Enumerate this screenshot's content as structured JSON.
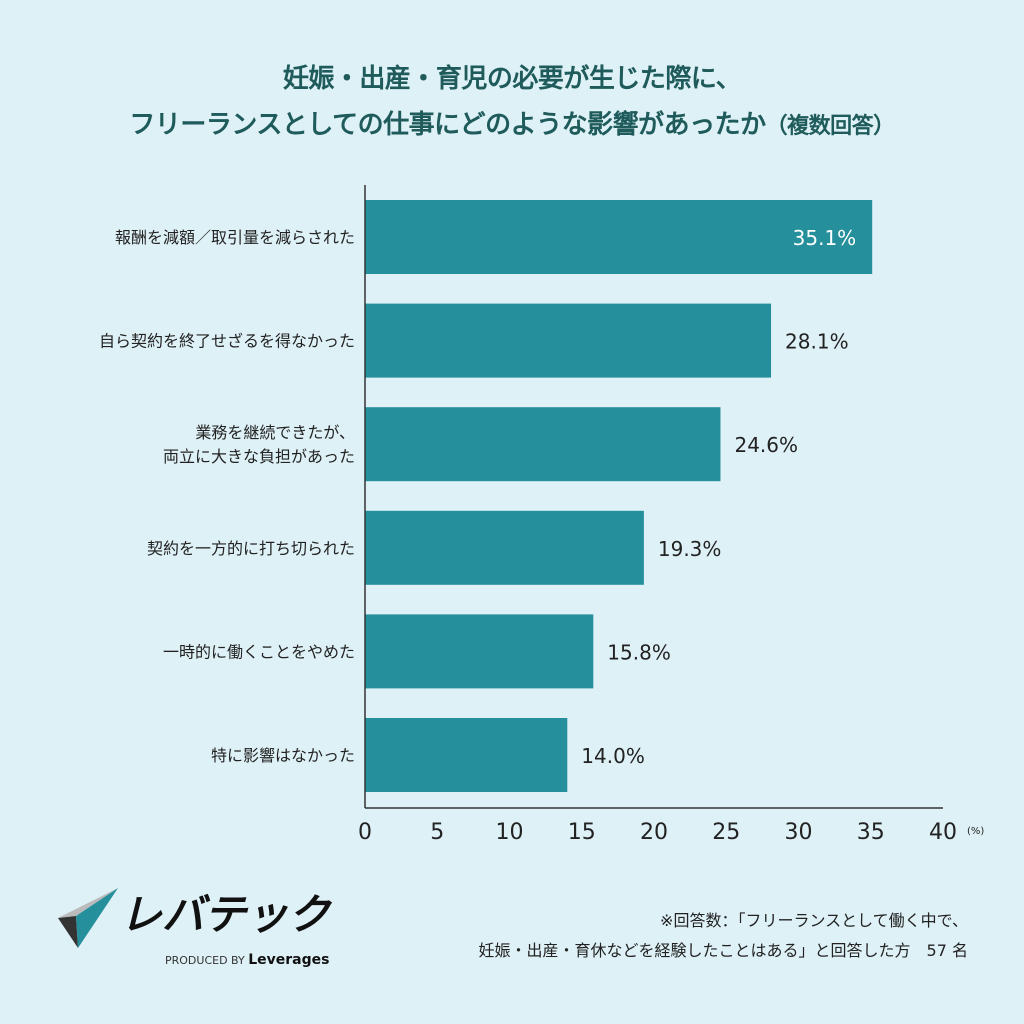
{
  "title": {
    "line1": "妊娠・出産・育児の必要が生じた際に、",
    "line2": "フリーランスとしての仕事にどのような影響があったか",
    "note": "（複数回答）"
  },
  "chart_data": {
    "type": "bar",
    "orientation": "horizontal",
    "categories": [
      "報酬を減額／取引量を減らされた",
      "自ら契約を終了せざるを得なかった",
      "業務を継続できたが、\n両立に大きな負担があった",
      "契約を一方的に打ち切られた",
      "一時的に働くことをやめた",
      "特に影響はなかった"
    ],
    "values": [
      35.1,
      28.1,
      24.6,
      19.3,
      15.8,
      14.0
    ],
    "data_labels": [
      "35.1%",
      "28.1%",
      "24.6%",
      "19.3%",
      "15.8%",
      "14.0%"
    ],
    "xlim": [
      0,
      40
    ],
    "xticks": [
      0,
      5,
      10,
      15,
      20,
      25,
      30,
      35,
      40
    ],
    "xunit": "(%)",
    "grid": false,
    "bar_color": "#258f9c"
  },
  "footnote": {
    "line1": "※回答数：「フリーランスとして働く中で、",
    "line2": "妊娠・出産・育休などを経験したことはある」と回答した方　57 名"
  },
  "logo": {
    "name": "レバテック",
    "produced_by": "PRODUCED BY",
    "company": "Leverages"
  }
}
